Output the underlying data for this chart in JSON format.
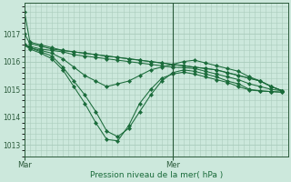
{
  "bg_color": "#cce8dc",
  "grid_color": "#aaccbc",
  "line_color": "#1a6b3a",
  "marker_color": "#1a6b3a",
  "xlabel": "Pression niveau de la mer( hPa )",
  "xlabel_color": "#1a6b3a",
  "tick_color": "#2a5a3a",
  "spine_color": "#2a5a3a",
  "ylim": [
    1012.6,
    1018.1
  ],
  "yticks": [
    1013,
    1014,
    1015,
    1016,
    1017
  ],
  "xlim": [
    0,
    48
  ],
  "mar_x": 0,
  "mer_x": 27,
  "series": [
    {
      "x": [
        0,
        1,
        3,
        5,
        7,
        9,
        11,
        13,
        15,
        17,
        19,
        21,
        23,
        25,
        27,
        29,
        31,
        33,
        35,
        37,
        39,
        41,
        43,
        45,
        47
      ],
      "y": [
        1017.8,
        1016.7,
        1016.6,
        1016.5,
        1016.4,
        1016.35,
        1016.3,
        1016.25,
        1016.2,
        1016.15,
        1016.1,
        1016.05,
        1016.0,
        1015.95,
        1015.9,
        1015.85,
        1015.8,
        1015.75,
        1015.7,
        1015.6,
        1015.5,
        1015.4,
        1015.3,
        1015.1,
        1014.95
      ]
    },
    {
      "x": [
        0,
        1,
        3,
        5,
        7,
        9,
        11,
        13,
        15,
        17,
        19,
        21,
        23,
        25,
        27,
        29,
        31,
        33,
        35,
        37,
        39,
        41,
        43,
        45,
        47
      ],
      "y": [
        1017.0,
        1016.65,
        1016.55,
        1016.45,
        1016.4,
        1016.35,
        1016.3,
        1016.25,
        1016.2,
        1016.15,
        1016.1,
        1016.05,
        1016.0,
        1015.95,
        1015.9,
        1015.85,
        1015.8,
        1015.75,
        1015.7,
        1015.6,
        1015.5,
        1015.4,
        1015.3,
        1015.1,
        1014.95
      ]
    },
    {
      "x": [
        0,
        1,
        3,
        5,
        7,
        9,
        11,
        13,
        15,
        17,
        19,
        21,
        23,
        25,
        27,
        29,
        31,
        33,
        35,
        37,
        39,
        41,
        43,
        45,
        47
      ],
      "y": [
        1016.6,
        1016.55,
        1016.45,
        1016.4,
        1016.35,
        1016.25,
        1016.2,
        1016.15,
        1016.1,
        1016.05,
        1016.0,
        1015.95,
        1015.9,
        1015.85,
        1015.8,
        1015.78,
        1015.75,
        1015.65,
        1015.55,
        1015.45,
        1015.35,
        1015.2,
        1015.1,
        1015.0,
        1014.95
      ]
    },
    {
      "x": [
        0,
        1,
        3,
        5,
        7,
        9,
        11,
        13,
        15,
        17,
        19,
        21,
        23,
        25,
        27,
        29,
        31,
        33,
        35,
        37,
        39,
        41,
        43,
        45,
        47
      ],
      "y": [
        1016.6,
        1016.5,
        1016.4,
        1016.3,
        1016.1,
        1015.8,
        1015.5,
        1015.3,
        1015.1,
        1015.2,
        1015.3,
        1015.5,
        1015.7,
        1015.8,
        1015.9,
        1016.0,
        1016.05,
        1015.95,
        1015.85,
        1015.75,
        1015.65,
        1015.45,
        1015.3,
        1015.1,
        1014.95
      ]
    },
    {
      "x": [
        0,
        1,
        3,
        5,
        7,
        9,
        11,
        13,
        15,
        17,
        19,
        21,
        23,
        25,
        27,
        29,
        31,
        33,
        35,
        37,
        39,
        41,
        43,
        45,
        47
      ],
      "y": [
        1016.6,
        1016.5,
        1016.35,
        1016.2,
        1015.8,
        1015.3,
        1014.8,
        1014.2,
        1013.5,
        1013.3,
        1013.6,
        1014.2,
        1014.8,
        1015.3,
        1015.6,
        1015.7,
        1015.65,
        1015.55,
        1015.45,
        1015.3,
        1015.2,
        1015.0,
        1014.95,
        1014.92,
        1014.9
      ]
    },
    {
      "x": [
        0,
        1,
        3,
        5,
        7,
        9,
        11,
        13,
        15,
        17,
        19,
        21,
        23,
        25,
        27,
        29,
        31,
        33,
        35,
        37,
        39,
        41,
        43,
        45,
        47
      ],
      "y": [
        1016.6,
        1016.45,
        1016.3,
        1016.1,
        1015.7,
        1015.1,
        1014.5,
        1013.8,
        1013.2,
        1013.15,
        1013.7,
        1014.5,
        1015.0,
        1015.4,
        1015.55,
        1015.62,
        1015.55,
        1015.45,
        1015.35,
        1015.25,
        1015.1,
        1014.98,
        1014.94,
        1014.92,
        1014.9
      ]
    }
  ],
  "n_xminor": 48,
  "minor_grid_every": 1
}
